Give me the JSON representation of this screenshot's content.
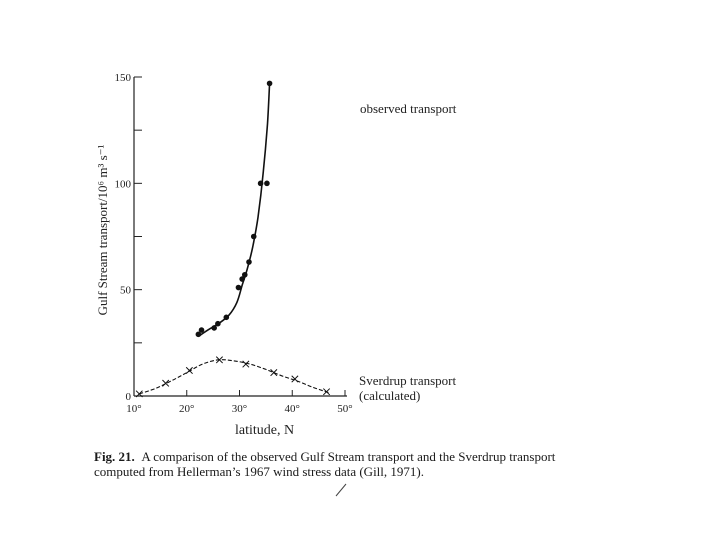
{
  "chart_data": {
    "type": "scatter",
    "ylabel": "Gulf Stream   transport/10⁶ m³ s⁻¹",
    "xlabel": "latitude, N",
    "xlim": [
      10,
      50
    ],
    "ylim": [
      0,
      150
    ],
    "x_ticks": [
      {
        "value": 10,
        "label": "10°"
      },
      {
        "value": 20,
        "label": "20°"
      },
      {
        "value": 30,
        "label": "30°"
      },
      {
        "value": 40,
        "label": "40°"
      },
      {
        "value": 50,
        "label": "50°"
      }
    ],
    "y_ticks": [
      {
        "value": 0,
        "label": "0"
      },
      {
        "value": 50,
        "label": "50"
      },
      {
        "value": 100,
        "label": "100"
      },
      {
        "value": 150,
        "label": "150"
      }
    ],
    "y_minor_ticks": [
      25,
      75,
      125
    ],
    "grid": false,
    "series": [
      {
        "name": "observed transport",
        "marker": "dot",
        "color": "#111111",
        "x": [
          22.2,
          22.8,
          25.2,
          25.9,
          27.5,
          29.8,
          30.5,
          31.0,
          31.8,
          32.7,
          34.0,
          35.2,
          35.7
        ],
        "y": [
          29,
          31,
          32,
          34,
          37,
          51,
          55,
          57,
          63,
          75,
          100,
          100,
          147
        ],
        "fit_curve": {
          "x": [
            22.2,
            24.0,
            26.0,
            28.0,
            29.5,
            30.5,
            31.5,
            32.5,
            33.5,
            34.5,
            35.3,
            35.7
          ],
          "y": [
            28,
            31,
            34,
            38,
            44,
            52,
            60,
            70,
            84,
            105,
            128,
            147
          ]
        }
      },
      {
        "name": "Sverdrup transport",
        "label_line2": "(calculated)",
        "marker": "x",
        "color": "#111111",
        "x": [
          11,
          16,
          20.5,
          26.2,
          31.2,
          36.5,
          40.5,
          46.5
        ],
        "y": [
          1,
          6,
          12,
          17,
          15,
          11,
          8,
          2
        ],
        "fit_curve": {
          "x": [
            11,
            14,
            17,
            20,
            23,
            26,
            29,
            32,
            35,
            38,
            41,
            44,
            47
          ],
          "y": [
            1,
            3.5,
            7,
            11,
            15,
            17,
            16.5,
            15,
            12.5,
            9.5,
            7,
            4,
            1.5
          ]
        }
      }
    ]
  },
  "caption": {
    "lead": "Fig. 21.",
    "line1": "A comparison of the observed Gulf Stream transport and the Sverdrup transport",
    "line2": "computed from Hellerman’s 1967 wind stress data (Gill, 1971)."
  }
}
